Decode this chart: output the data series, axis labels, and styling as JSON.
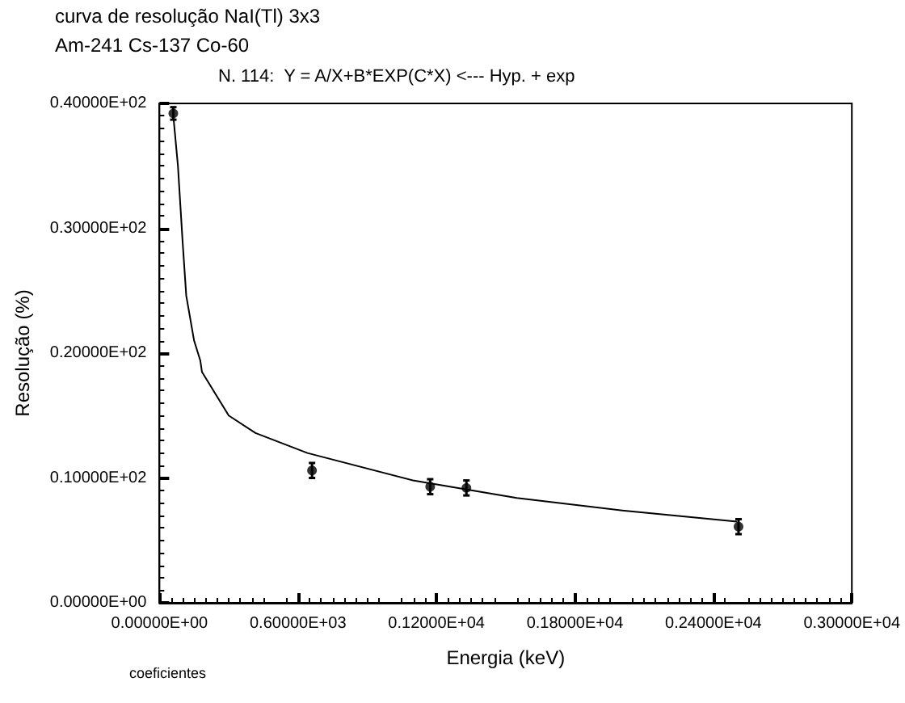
{
  "chart_data": {
    "type": "scatter",
    "title": "curva de resolução NaI(Tl) 3x3",
    "subtitle": "Am-241 Cs-137 Co-60",
    "xlabel": "Energia (keV)",
    "ylabel": "Resolução (%)",
    "annotations": [
      "N. 114:  Y = A/X+B*EXP(C*X) <--- Hyp. + exp",
      "coeficientes"
    ],
    "xlim": [
      0,
      3000
    ],
    "ylim": [
      0,
      40
    ],
    "xticks": [
      {
        "value": 0,
        "label": "0.00000E+00"
      },
      {
        "value": 600,
        "label": "0.60000E+03"
      },
      {
        "value": 1200,
        "label": "0.12000E+04"
      },
      {
        "value": 1800,
        "label": "0.18000E+04"
      },
      {
        "value": 2400,
        "label": "0.24000E+04"
      },
      {
        "value": 3000,
        "label": "0.30000E+04"
      }
    ],
    "yticks": [
      {
        "value": 0,
        "label": "0.00000E+00"
      },
      {
        "value": 10,
        "label": "0.10000E+02"
      },
      {
        "value": 20,
        "label": "0.20000E+02"
      },
      {
        "value": 30,
        "label": "0.30000E+02"
      },
      {
        "value": 40,
        "label": "0.40000E+02"
      }
    ],
    "grid": false,
    "series": [
      {
        "marker": "circle",
        "color": "#000000",
        "x": [
          60,
          661,
          1173,
          1330,
          2509
        ],
        "values": [
          39.2,
          10.6,
          9.3,
          9.2,
          6.1
        ],
        "errors": [
          0.5,
          0.6,
          0.6,
          0.6,
          0.6
        ]
      },
      {
        "type": "line",
        "marker": "none",
        "color": "#000000",
        "line_style": "solid",
        "x": [
          60,
          80,
          100,
          116,
          150,
          177,
          184,
          300,
          416,
          641,
          1098,
          1548,
          2005,
          2502
        ],
        "values": [
          39,
          35,
          29,
          24.6,
          21,
          19.4,
          18.5,
          15,
          13.6,
          12,
          9.8,
          8.4,
          7.4,
          6.5
        ]
      }
    ]
  }
}
